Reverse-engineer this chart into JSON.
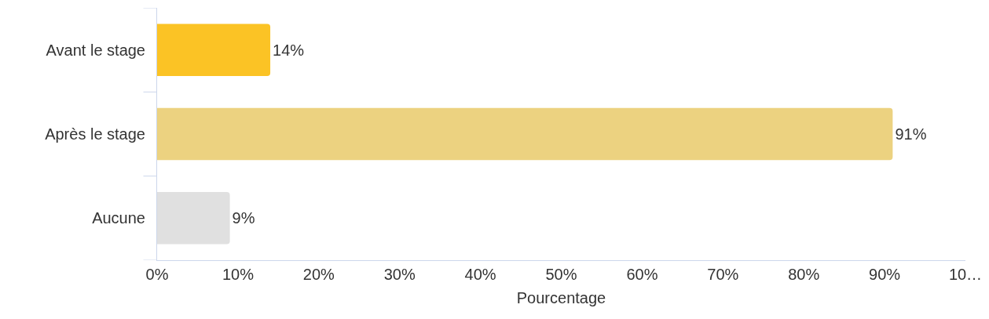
{
  "chart_data": {
    "type": "bar",
    "orientation": "horizontal",
    "xlabel": "Pourcentage",
    "categories": [
      "Avant le stage",
      "Après le stage",
      "Aucune"
    ],
    "values": [
      14,
      91,
      9
    ],
    "colors": [
      "#fbc325",
      "#ecd280",
      "#e0e0e0"
    ],
    "value_labels": [
      "14%",
      "91%",
      "9%"
    ],
    "xlim": [
      0,
      100
    ],
    "xticks": [
      {
        "value": 0,
        "label": "0%"
      },
      {
        "value": 10,
        "label": "10%"
      },
      {
        "value": 20,
        "label": "20%"
      },
      {
        "value": 30,
        "label": "30%"
      },
      {
        "value": 40,
        "label": "40%"
      },
      {
        "value": 50,
        "label": "50%"
      },
      {
        "value": 60,
        "label": "60%"
      },
      {
        "value": 70,
        "label": "70%"
      },
      {
        "value": 80,
        "label": "80%"
      },
      {
        "value": 90,
        "label": "90%"
      },
      {
        "value": 100,
        "label": "10…"
      }
    ],
    "grid": false
  }
}
